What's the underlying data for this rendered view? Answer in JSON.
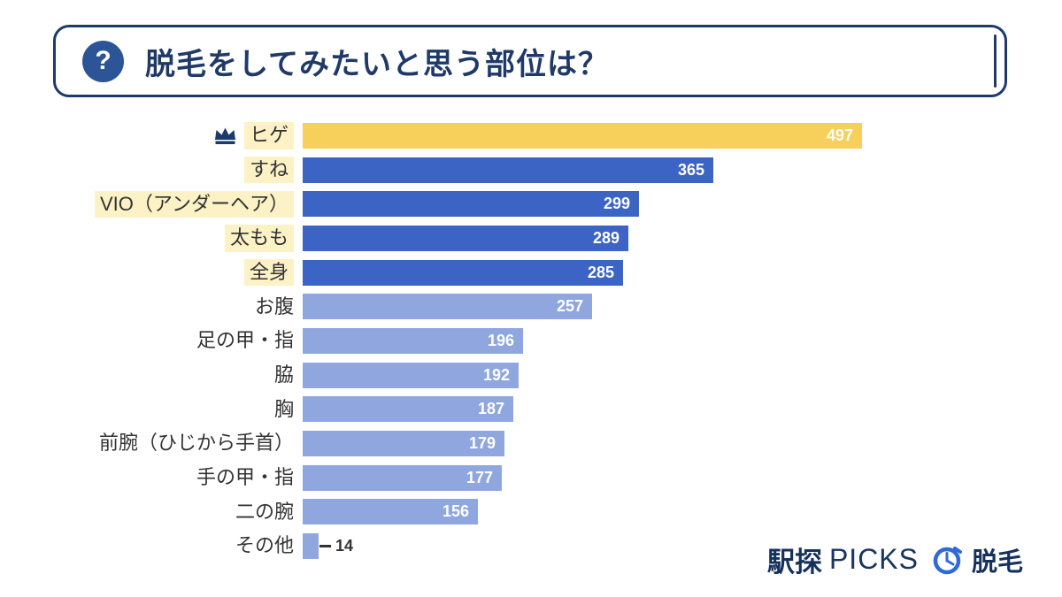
{
  "header": {
    "icon_glyph": "?",
    "title": "脱毛をしてみたいと思う部位は？"
  },
  "chart_data": {
    "type": "bar",
    "orientation": "horizontal",
    "title": "脱毛をしてみたいと思う部位は？",
    "categories": [
      "ヒゲ",
      "すね",
      "VIO（アンダーヘア）",
      "太もも",
      "全身",
      "お腹",
      "足の甲・指",
      "脇",
      "胸",
      "前腕（ひじから手首）",
      "手の甲・指",
      "二の腕",
      "その他"
    ],
    "values": [
      497,
      365,
      299,
      289,
      285,
      257,
      196,
      192,
      187,
      179,
      177,
      156,
      14
    ],
    "bar_styles": [
      "gold",
      "dark_blue",
      "dark_blue",
      "dark_blue",
      "dark_blue",
      "light_blue",
      "light_blue",
      "light_blue",
      "light_blue",
      "light_blue",
      "light_blue",
      "light_blue",
      "light_blue"
    ],
    "highlighted_categories": [
      "ヒゲ",
      "すね",
      "VIO（アンダーヘア）",
      "太もも",
      "全身"
    ],
    "crown_category": "ヒゲ",
    "xlim": [
      0,
      497
    ],
    "grid": false,
    "legend": false,
    "value_labels": "inside-end, outside for smallest bar"
  },
  "colors": {
    "gold": "#f7cf5b",
    "dark_blue": "#3b64c5",
    "light_blue": "#8fa6df",
    "highlight": "#fcf2c5",
    "navy": "#1c3a6e",
    "brand_blue": "#2e6ad8"
  },
  "footer": {
    "brand_left": "駅探",
    "brand_picks": "PICKS",
    "brand_right": "脱毛"
  }
}
